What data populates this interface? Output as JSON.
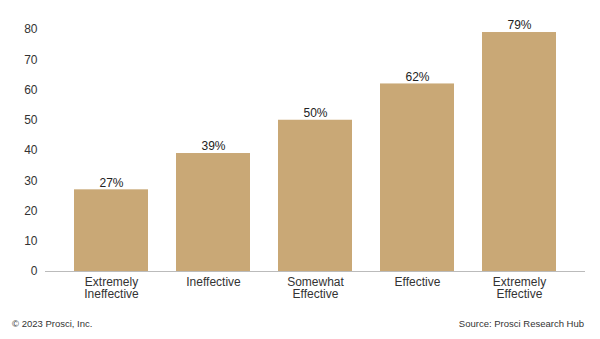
{
  "chart_data": {
    "type": "bar",
    "categories": [
      "Extremely\nIneffective",
      "Ineffective",
      "Somewhat\nEffective",
      "Effective",
      "Extremely\nEffective"
    ],
    "values": [
      27,
      39,
      50,
      62,
      79
    ],
    "value_labels": [
      "27%",
      "39%",
      "50%",
      "62%",
      "79%"
    ],
    "data_labels": true,
    "color": "#c9a876",
    "ylim": [
      0,
      80
    ],
    "yticks": [
      0,
      10,
      20,
      30,
      40,
      50,
      60,
      70,
      80
    ],
    "grid": false,
    "caption": "© 2023 Prosci, Inc.",
    "source": "Source: Prosci Research Hub"
  }
}
